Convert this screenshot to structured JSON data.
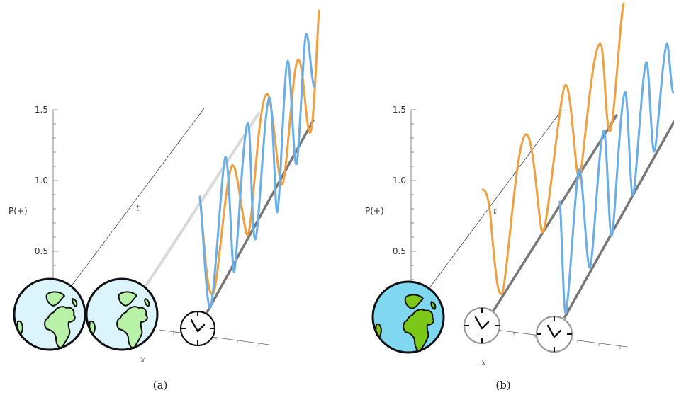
{
  "panels": [
    {
      "caption": "(a)",
      "y_axis_label": "P(+)",
      "ticks": [
        "1.5",
        "1.0",
        "0.5"
      ],
      "t_label": "t",
      "x_label": "x"
    },
    {
      "caption": "(b)",
      "y_axis_label": "P(+)",
      "ticks": [
        "1.5",
        "1.0",
        "0.5"
      ],
      "t_label": "t",
      "x_label": "x"
    }
  ],
  "colors": {
    "orange_curve": "#f0a040",
    "blue_curve": "#6aaee8",
    "track": "#777777",
    "globe_ocean_pale": "#dcf4fb",
    "globe_land_pale": "#b8f2a8",
    "globe_ocean_saturated": "#7fd8f0",
    "globe_land_saturated": "#7cc818",
    "clock_rim_black": "#111111",
    "clock_rim_grey": "#999999"
  },
  "icons": {
    "globe": "earth-globe-icon",
    "clock": "clock-icon"
  }
}
